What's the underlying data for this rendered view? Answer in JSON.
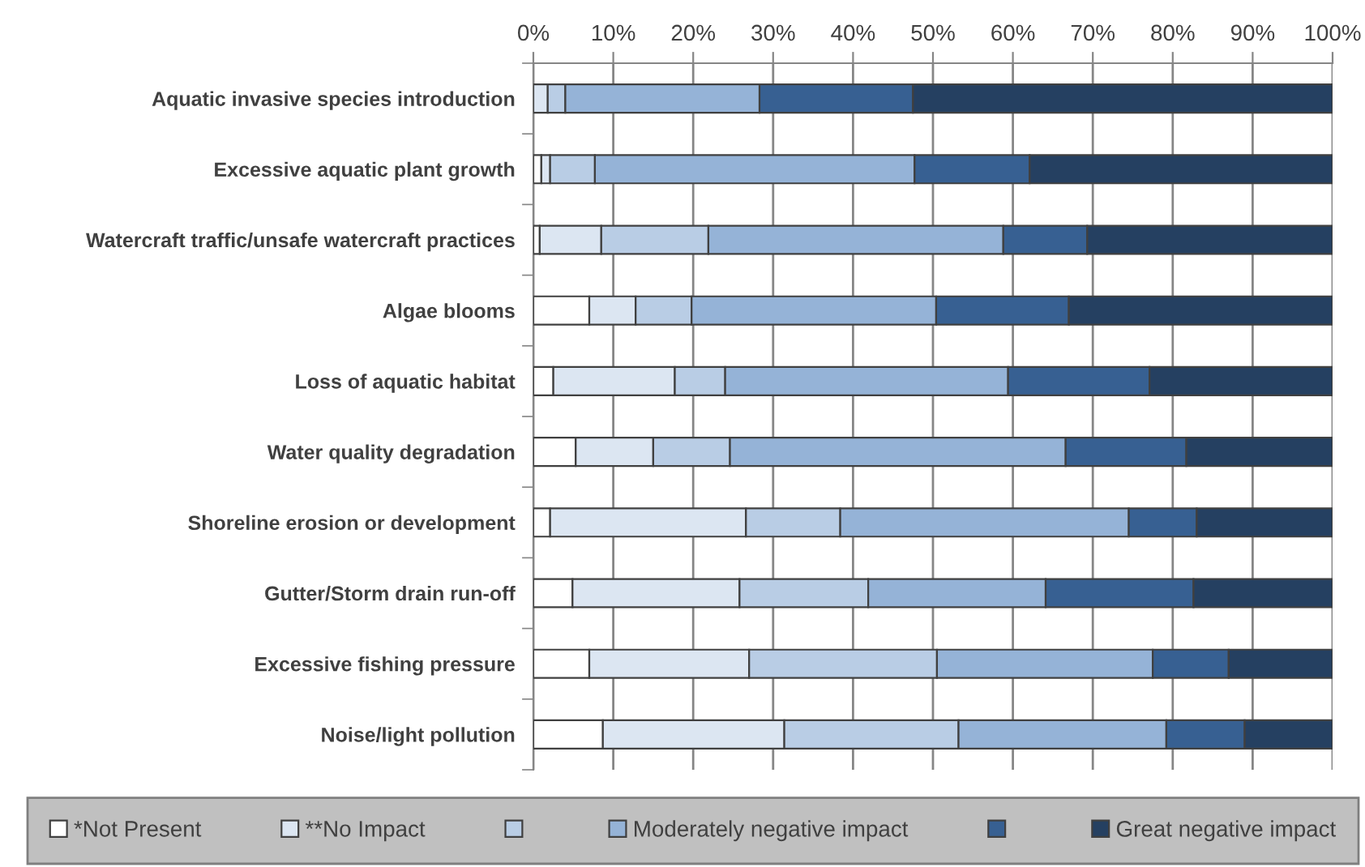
{
  "chart_data": {
    "type": "bar",
    "orientation": "horizontal",
    "stacked": true,
    "categories": [
      "Aquatic invasive species introduction",
      "Excessive aquatic plant growth",
      "Watercraft traffic/unsafe watercraft practices",
      "Algae blooms",
      "Loss of aquatic habitat",
      "Water quality degradation",
      "Shoreline erosion or development",
      "Gutter/Storm drain run-off",
      "Excessive fishing pressure",
      "Noise/light pollution"
    ],
    "series": [
      {
        "name": "*Not Present",
        "color": "#ffffff",
        "values": [
          0,
          1.0,
          0.8,
          7.0,
          2.5,
          5.3,
          2.1,
          4.9,
          7.0,
          8.7
        ]
      },
      {
        "name": "**No Impact",
        "color": "#dce6f2",
        "values": [
          1.8,
          1.1,
          7.7,
          5.8,
          15.2,
          9.7,
          24.5,
          20.9,
          20.0,
          22.7
        ]
      },
      {
        "color": "#b9cde5",
        "values": [
          2.2,
          5.6,
          13.4,
          7.0,
          6.3,
          9.6,
          11.8,
          16.1,
          23.5,
          21.8
        ]
      },
      {
        "name": "Moderately negative impact",
        "color": "#95b3d7",
        "values": [
          24.3,
          40.0,
          36.9,
          30.6,
          35.4,
          42.0,
          36.1,
          22.2,
          27.0,
          26.0
        ]
      },
      {
        "color": "#376092",
        "values": [
          19.2,
          14.4,
          10.5,
          16.6,
          17.7,
          15.1,
          8.5,
          18.5,
          9.5,
          9.8
        ]
      },
      {
        "name": "Great negative impact",
        "color": "#254061",
        "values": [
          52.5,
          37.9,
          30.7,
          33.0,
          22.9,
          18.3,
          17.0,
          17.4,
          13.0,
          11.0
        ]
      }
    ],
    "xlim": [
      0,
      100
    ],
    "xticks": [
      {
        "value": 0,
        "label": "0%"
      },
      {
        "value": 10,
        "label": "10%"
      },
      {
        "value": 20,
        "label": "20%"
      },
      {
        "value": 30,
        "label": "30%"
      },
      {
        "value": 40,
        "label": "40%"
      },
      {
        "value": 50,
        "label": "50%"
      },
      {
        "value": 60,
        "label": "60%"
      },
      {
        "value": 70,
        "label": "70%"
      },
      {
        "value": 80,
        "label": "80%"
      },
      {
        "value": 90,
        "label": "90%"
      },
      {
        "value": 100,
        "label": "100%"
      }
    ],
    "grid": "x",
    "legend": "bottom"
  }
}
